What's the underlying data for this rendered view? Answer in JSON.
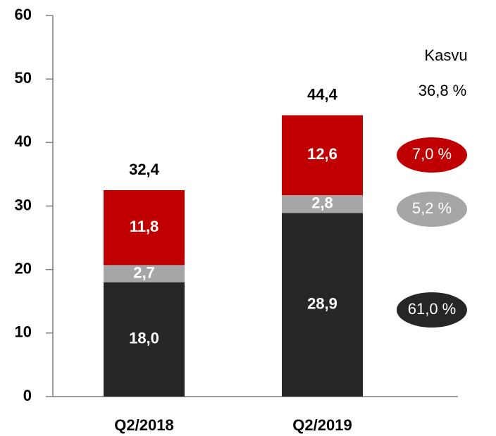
{
  "chart_data": {
    "type": "stacked_bar",
    "categories": [
      "Q2/2018",
      "Q2/2019"
    ],
    "series": [
      {
        "color": "#262626",
        "values": [
          18.0,
          28.9
        ],
        "value_labels": [
          "18,0",
          "28,9"
        ]
      },
      {
        "color": "#a6a6a6",
        "values": [
          2.7,
          2.8
        ],
        "value_labels": [
          "2,7",
          "2,8"
        ]
      },
      {
        "color": "#c00000",
        "values": [
          11.8,
          12.6
        ],
        "value_labels": [
          "11,8",
          "12,6"
        ]
      }
    ],
    "totals": {
      "values": [
        32.4,
        44.4
      ],
      "value_labels": [
        "32,4",
        "44,4"
      ]
    },
    "growth_title": "Kasvu",
    "growth_total": "36,8 %",
    "growth": [
      "61,0 %",
      "5,2 %",
      "7,0 %"
    ],
    "ylim": [
      0,
      60
    ],
    "yticks": [
      0,
      10,
      20,
      30,
      40,
      50,
      60
    ],
    "grid": false
  }
}
